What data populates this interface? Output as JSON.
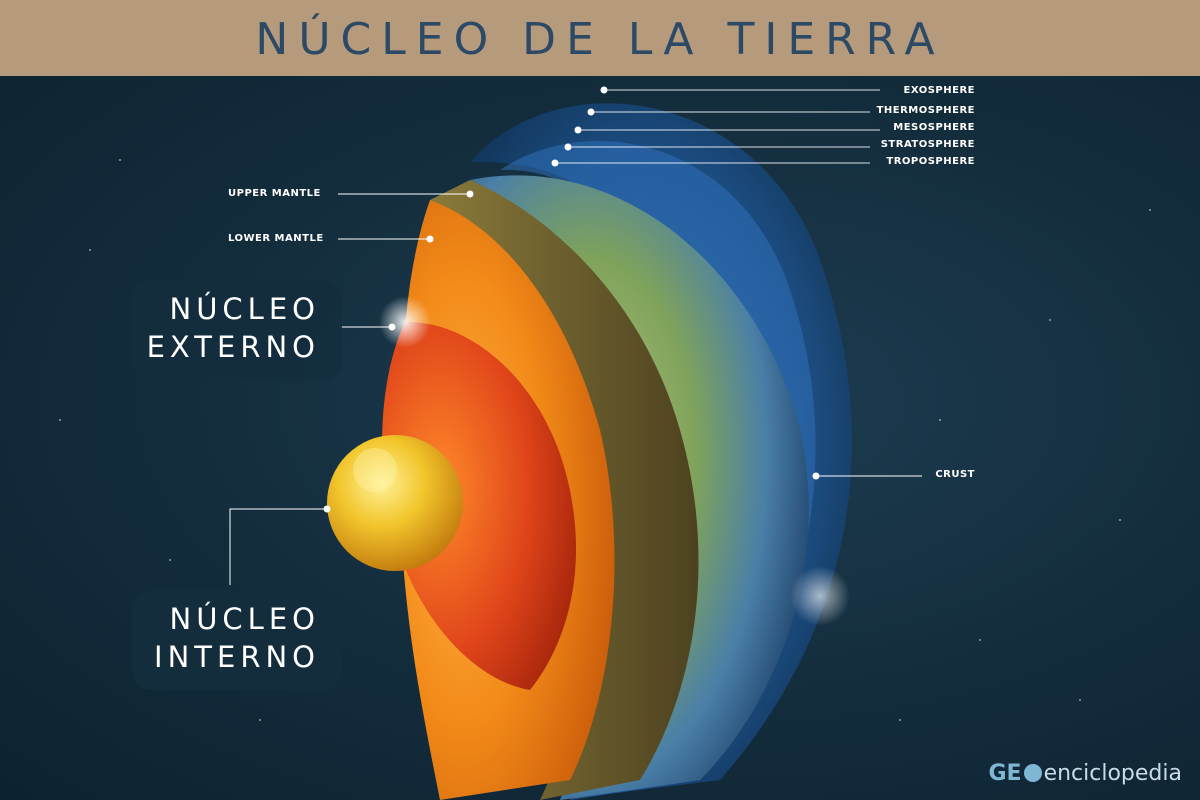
{
  "title": "NÚCLEO DE LA TIERRA",
  "atmosphere_labels": [
    "EXOSPHERE",
    "THERMOSPHERE",
    "MESOSPHERE",
    "STRATOSPHERE",
    "TROPOSPHERE"
  ],
  "mantle_labels": {
    "upper": "UPPER MANTLE",
    "lower": "LOWER MANTLE"
  },
  "crust_label": "CRUST",
  "outer_core": {
    "line1": "NÚCLEO",
    "line2": "EXTERNO"
  },
  "inner_core": {
    "line1": "NÚCLEO",
    "line2": "INTERNO"
  },
  "brand": {
    "part1": "GE",
    "part2": "enciclopedia"
  },
  "colors": {
    "title_bar": "#b59a7c",
    "title_text": "#2c4a66",
    "background": "#132c3c",
    "atmosphere": "#2f6fb8",
    "crust": "#6b5a2c",
    "mantle": "#f08a18",
    "outer_core": "#e0451a",
    "inner_core": "#f2c62c"
  }
}
